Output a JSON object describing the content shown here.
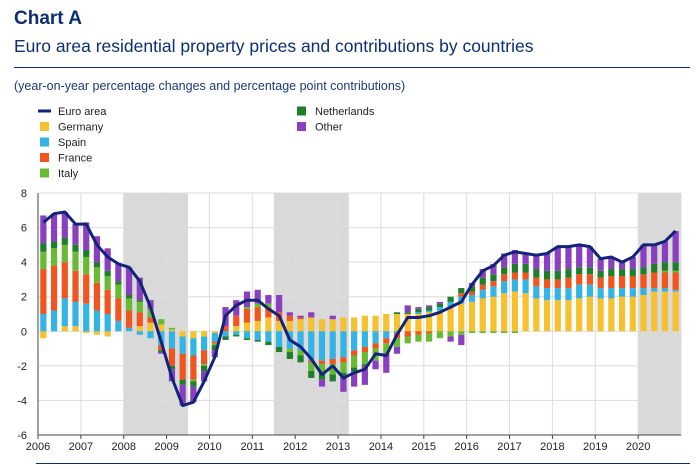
{
  "header": {
    "title": "Chart A",
    "subtitle": "Euro area residential property prices and contributions by countries",
    "note": "(year-on-year percentage changes and percentage point contributions)"
  },
  "colors": {
    "euro_area": "#13237a",
    "Germany": "#f5c12e",
    "Spain": "#33b4e4",
    "France": "#f0541f",
    "Italy": "#66bb33",
    "Netherlands": "#1d7f2a",
    "Other": "#8a3fbf",
    "shade": "#d9d9d9",
    "grid": "#dcdcdc"
  },
  "chart_data": {
    "type": "bar",
    "ylim": [
      -6,
      8
    ],
    "yticks": [
      8,
      6,
      4,
      2,
      0,
      -2,
      -4,
      -6
    ],
    "xticks": [
      "2006",
      "2007",
      "2008",
      "2009",
      "2010",
      "2011",
      "2012",
      "2013",
      "2014",
      "2015",
      "2016",
      "2017",
      "2018",
      "2019",
      "2020"
    ],
    "x_start": "2006Q1",
    "legend": [
      {
        "name": "Euro area",
        "kind": "line",
        "color": "#13237a"
      },
      {
        "name": "Germany",
        "kind": "bar",
        "color": "#f5c12e"
      },
      {
        "name": "Spain",
        "kind": "bar",
        "color": "#33b4e4"
      },
      {
        "name": "France",
        "kind": "bar",
        "color": "#f0541f"
      },
      {
        "name": "Italy",
        "kind": "bar",
        "color": "#66bb33"
      },
      {
        "name": "Netherlands",
        "kind": "bar",
        "color": "#1d7f2a"
      },
      {
        "name": "Other",
        "kind": "bar",
        "color": "#8a3fbf"
      }
    ],
    "shaded_periods": [
      {
        "from": "2008Q1",
        "to": "2009Q2"
      },
      {
        "from": "2011Q3",
        "to": "2013Q1"
      },
      {
        "from": "2020Q1",
        "to": "2020Q4"
      }
    ],
    "quarters": [
      "2006Q1",
      "2006Q2",
      "2006Q3",
      "2006Q4",
      "2007Q1",
      "2007Q2",
      "2007Q3",
      "2007Q4",
      "2008Q1",
      "2008Q2",
      "2008Q3",
      "2008Q4",
      "2009Q1",
      "2009Q2",
      "2009Q3",
      "2009Q4",
      "2010Q1",
      "2010Q2",
      "2010Q3",
      "2010Q4",
      "2011Q1",
      "2011Q2",
      "2011Q3",
      "2011Q4",
      "2012Q1",
      "2012Q2",
      "2012Q3",
      "2012Q4",
      "2013Q1",
      "2013Q2",
      "2013Q3",
      "2013Q4",
      "2014Q1",
      "2014Q2",
      "2014Q3",
      "2014Q4",
      "2015Q1",
      "2015Q2",
      "2015Q3",
      "2015Q4",
      "2016Q1",
      "2016Q2",
      "2016Q3",
      "2016Q4",
      "2017Q1",
      "2017Q2",
      "2017Q3",
      "2017Q4",
      "2018Q1",
      "2018Q2",
      "2018Q3",
      "2018Q4",
      "2019Q1",
      "2019Q2",
      "2019Q3",
      "2019Q4",
      "2020Q1",
      "2020Q2",
      "2020Q3",
      "2020Q4"
    ],
    "euro_area": [
      6.3,
      6.8,
      6.9,
      6.2,
      6.2,
      5.0,
      4.3,
      3.9,
      3.7,
      2.9,
      1.4,
      -0.6,
      -2.7,
      -4.3,
      -4.1,
      -2.9,
      -1.5,
      0.9,
      1.5,
      1.8,
      1.8,
      1.3,
      0.9,
      -0.5,
      -0.9,
      -1.6,
      -2.5,
      -2.0,
      -2.7,
      -2.4,
      -2.2,
      -1.3,
      -1.4,
      -0.2,
      0.8,
      0.8,
      0.9,
      1.1,
      1.4,
      1.7,
      2.7,
      3.5,
      3.8,
      4.4,
      4.6,
      4.5,
      4.4,
      4.5,
      4.9,
      4.9,
      5.0,
      4.9,
      4.2,
      4.3,
      4.0,
      4.3,
      5.0,
      5.0,
      5.2,
      5.8
    ],
    "series": [
      {
        "name": "Germany",
        "values": [
          -0.4,
          0.0,
          0.3,
          0.3,
          -0.1,
          -0.2,
          -0.3,
          0.0,
          0.0,
          0.3,
          0.5,
          0.4,
          0.1,
          -0.3,
          -0.4,
          -0.3,
          -0.1,
          0.0,
          0.3,
          0.5,
          0.6,
          0.8,
          0.6,
          0.6,
          0.7,
          0.8,
          0.7,
          0.7,
          0.8,
          0.8,
          0.9,
          0.9,
          1.0,
          1.0,
          1.0,
          1.0,
          1.1,
          1.2,
          1.4,
          1.6,
          1.7,
          1.9,
          2.0,
          2.2,
          2.3,
          2.2,
          1.9,
          1.8,
          1.8,
          1.8,
          1.9,
          2.0,
          1.9,
          1.9,
          2.0,
          2.0,
          2.1,
          2.3,
          2.3,
          2.3
        ]
      },
      {
        "name": "Spain",
        "values": [
          1.0,
          1.2,
          1.6,
          1.4,
          1.6,
          1.2,
          1.0,
          0.6,
          0.2,
          -0.2,
          -0.4,
          -0.8,
          -1.0,
          -1.0,
          -1.0,
          -0.8,
          -0.5,
          -0.3,
          -0.2,
          -0.4,
          -0.5,
          -0.6,
          -0.9,
          -1.0,
          -1.1,
          -1.7,
          -1.7,
          -1.6,
          -1.5,
          -1.1,
          -0.9,
          -0.7,
          -0.4,
          -0.1,
          0.0,
          0.1,
          0.1,
          0.2,
          0.3,
          0.4,
          0.4,
          0.5,
          0.6,
          0.7,
          0.7,
          0.8,
          0.7,
          0.7,
          0.7,
          0.7,
          0.8,
          0.7,
          0.6,
          0.6,
          0.5,
          0.5,
          0.4,
          0.2,
          0.2,
          0.1
        ]
      },
      {
        "name": "France",
        "values": [
          2.6,
          2.6,
          2.1,
          1.8,
          1.7,
          1.6,
          1.4,
          1.3,
          1.0,
          0.8,
          0.3,
          -0.3,
          -1.0,
          -1.5,
          -1.4,
          -0.8,
          -0.1,
          0.3,
          0.6,
          0.8,
          0.8,
          0.6,
          0.5,
          0.3,
          0.1,
          -0.1,
          -0.2,
          -0.3,
          -0.3,
          -0.3,
          -0.3,
          -0.3,
          -0.3,
          -0.3,
          -0.3,
          -0.2,
          -0.1,
          0.0,
          0.0,
          0.2,
          0.2,
          0.3,
          0.3,
          0.4,
          0.4,
          0.4,
          0.5,
          0.5,
          0.5,
          0.6,
          0.6,
          0.6,
          0.6,
          0.7,
          0.7,
          0.7,
          0.8,
          0.9,
          0.9,
          1.0
        ]
      },
      {
        "name": "Italy",
        "values": [
          1.0,
          1.0,
          1.0,
          1.1,
          1.0,
          0.9,
          0.8,
          0.8,
          0.7,
          0.6,
          0.5,
          0.3,
          0.1,
          0.0,
          -0.1,
          -0.1,
          -0.1,
          0.0,
          0.0,
          0.1,
          0.2,
          0.2,
          0.0,
          -0.2,
          -0.3,
          -0.5,
          -0.5,
          -0.6,
          -0.6,
          -0.7,
          -0.7,
          -0.7,
          -0.6,
          -0.5,
          -0.4,
          -0.4,
          -0.5,
          -0.4,
          -0.3,
          -0.2,
          -0.1,
          -0.1,
          -0.1,
          -0.1,
          -0.1,
          0.0,
          0.0,
          0.0,
          0.0,
          0.0,
          0.0,
          0.0,
          0.0,
          0.0,
          0.0,
          0.0,
          0.0,
          0.0,
          0.1,
          0.1
        ]
      },
      {
        "name": "Netherlands",
        "values": [
          0.5,
          0.4,
          0.4,
          0.4,
          0.4,
          0.3,
          0.3,
          0.2,
          0.2,
          0.1,
          0.0,
          -0.1,
          -0.2,
          -0.3,
          -0.3,
          -0.3,
          -0.3,
          -0.2,
          -0.1,
          -0.1,
          -0.1,
          -0.2,
          -0.3,
          -0.4,
          -0.4,
          -0.4,
          -0.4,
          -0.4,
          -0.3,
          -0.2,
          -0.1,
          0.0,
          0.0,
          0.1,
          0.1,
          0.2,
          0.2,
          0.2,
          0.3,
          0.3,
          0.3,
          0.4,
          0.4,
          0.4,
          0.5,
          0.5,
          0.5,
          0.5,
          0.5,
          0.5,
          0.4,
          0.4,
          0.4,
          0.4,
          0.4,
          0.4,
          0.4,
          0.5,
          0.5,
          0.5
        ]
      },
      {
        "name": "Other",
        "values": [
          1.6,
          1.6,
          1.5,
          1.2,
          1.6,
          1.5,
          1.3,
          1.0,
          1.6,
          1.3,
          0.5,
          -0.1,
          -0.7,
          -1.2,
          -0.9,
          -0.6,
          -0.4,
          1.1,
          0.9,
          0.9,
          0.8,
          0.5,
          1.0,
          0.2,
          0.1,
          0.3,
          -0.4,
          0.2,
          -0.8,
          -0.9,
          -1.1,
          -0.5,
          -1.1,
          -0.4,
          0.4,
          0.1,
          0.1,
          0.1,
          -0.3,
          -0.6,
          0.2,
          0.5,
          0.6,
          0.8,
          0.8,
          0.6,
          0.8,
          1.0,
          1.4,
          1.3,
          1.3,
          1.2,
          0.7,
          0.7,
          0.4,
          0.7,
          1.3,
          1.1,
          1.2,
          1.8
        ]
      }
    ]
  }
}
